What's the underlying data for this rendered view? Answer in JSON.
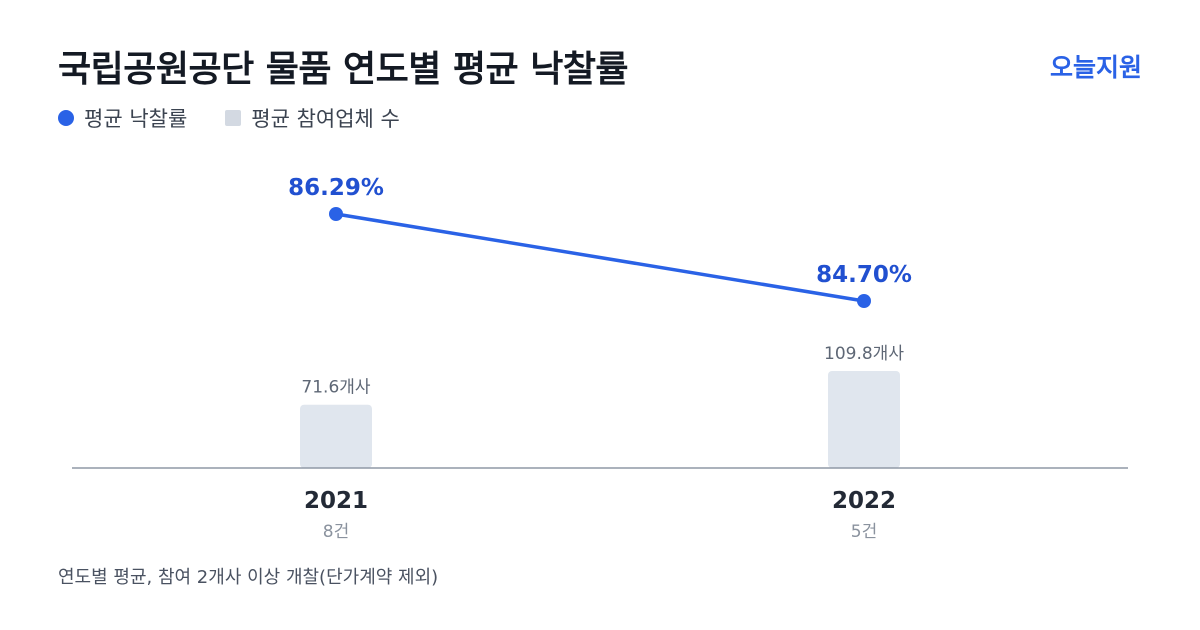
{
  "title": "국립공원공단 물품 연도별 평균 낙찰률",
  "brand": "오늘지원",
  "legend": [
    {
      "name": "평균 낙찰률",
      "color": "#2a62e6",
      "shape": "circle"
    },
    {
      "name": "평균 참여업체 수",
      "color": "#d3d9e2",
      "shape": "square"
    }
  ],
  "footnote": "연도별 평균, 참여 2개사 이상 개찰(단가계약 제외)",
  "chart_data": {
    "type": "bar+line",
    "categories": [
      "2021",
      "2022"
    ],
    "category_sublabels": [
      "8건",
      "5건"
    ],
    "series": [
      {
        "name": "평균 낙찰률",
        "kind": "line",
        "color": "#2a62e6",
        "values": [
          86.29,
          84.7
        ],
        "labels": [
          "86.29%",
          "84.70%"
        ]
      },
      {
        "name": "평균 참여업체 수",
        "kind": "bar",
        "color": "#e0e6ee",
        "values": [
          71.6,
          109.8
        ],
        "labels": [
          "71.6개사",
          "109.8개사"
        ]
      }
    ],
    "grid": false,
    "legend_position": "top-left"
  }
}
